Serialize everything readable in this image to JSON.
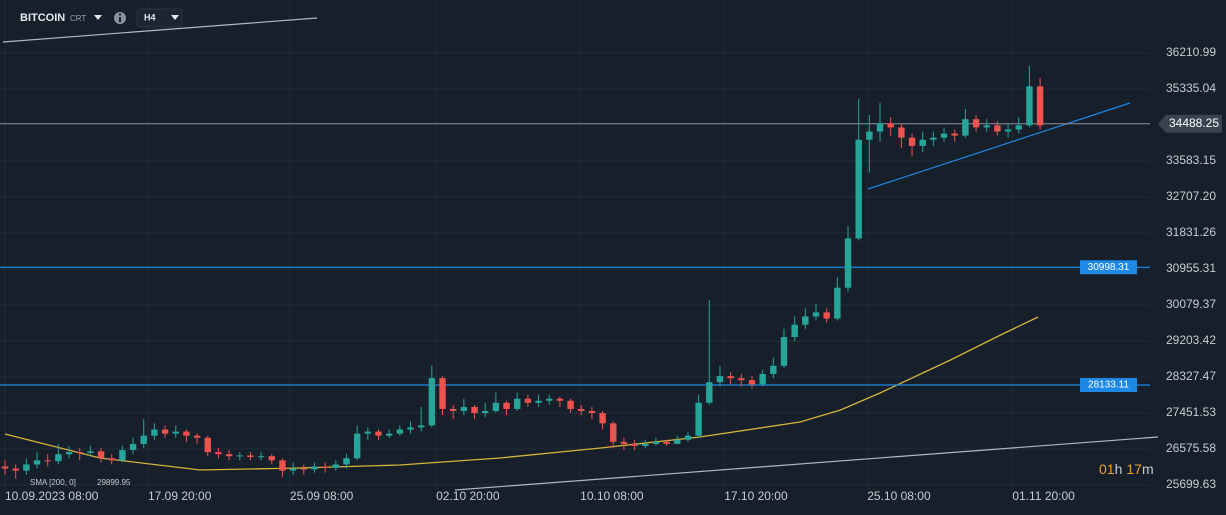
{
  "chart_data": {
    "type": "candlestick",
    "title": "BITCOIN",
    "instrument_tag": "CRT",
    "timeframe": "H4",
    "up_color": "#26a69a",
    "down_color": "#ef5350",
    "grid": true,
    "x": [
      0,
      1,
      2,
      3,
      4,
      5,
      6,
      7,
      8,
      9,
      10,
      11,
      12,
      13,
      14,
      15,
      16,
      17,
      18,
      19,
      20,
      21,
      22,
      23,
      24,
      25,
      26,
      27,
      28,
      29,
      30,
      31,
      32,
      33,
      34,
      35,
      36,
      37,
      38,
      39,
      40,
      41,
      42,
      43,
      44,
      45,
      46,
      47,
      48,
      49,
      50,
      51,
      52,
      53,
      54,
      55,
      56,
      57,
      58,
      59,
      60,
      61,
      62,
      63,
      64,
      65,
      66,
      67,
      68,
      69,
      70,
      71,
      72,
      73,
      74,
      75,
      76,
      77,
      78,
      79,
      80,
      81,
      82,
      83,
      84,
      85,
      86,
      87,
      88,
      89,
      90,
      91,
      92,
      93,
      94,
      95,
      96,
      97
    ],
    "open": [
      26150,
      26100,
      26050,
      26200,
      26300,
      26280,
      26450,
      26500,
      26480,
      26520,
      26350,
      26300,
      26550,
      26700,
      26900,
      27050,
      26950,
      27000,
      26900,
      26850,
      26500,
      26450,
      26400,
      26420,
      26380,
      26400,
      26300,
      26050,
      26100,
      26080,
      26150,
      26120,
      26200,
      26350,
      26950,
      27000,
      26900,
      26950,
      27050,
      27100,
      27150,
      28300,
      27550,
      27500,
      27600,
      27450,
      27500,
      27700,
      27550,
      27800,
      27700,
      27750,
      27800,
      27750,
      27550,
      27500,
      27450,
      27200,
      26750,
      26700,
      26650,
      26700,
      26750,
      26700,
      26800,
      26900,
      27700,
      28200,
      28350,
      28300,
      28250,
      28150,
      28400,
      28600,
      29300,
      29600,
      29800,
      29900,
      29750,
      30500,
      31700,
      34100,
      34300,
      34500,
      34400,
      34150,
      33950,
      34100,
      34150,
      34250,
      34200,
      34600,
      34400,
      34450,
      34300,
      34350,
      34450,
      35400
    ],
    "high": [
      26300,
      26200,
      26350,
      26500,
      26450,
      26700,
      26650,
      26600,
      26650,
      26600,
      26450,
      26650,
      26850,
      27300,
      27200,
      27150,
      27150,
      27050,
      26950,
      26900,
      26600,
      26550,
      26500,
      26500,
      26500,
      26450,
      26350,
      26250,
      26200,
      26250,
      26250,
      26300,
      26450,
      27150,
      27100,
      27050,
      27050,
      27150,
      27250,
      27600,
      28600,
      28350,
      27650,
      27800,
      27650,
      27700,
      27950,
      27750,
      27950,
      27900,
      27900,
      27900,
      27850,
      27800,
      27650,
      27600,
      27500,
      27250,
      26850,
      26800,
      26800,
      26850,
      26800,
      26900,
      27000,
      27900,
      30200,
      28600,
      28450,
      28400,
      28350,
      28500,
      28800,
      29500,
      29800,
      30000,
      30100,
      30000,
      30750,
      32000,
      35100,
      34700,
      35000,
      34650,
      34500,
      34250,
      34300,
      34300,
      34400,
      34350,
      34850,
      34700,
      34600,
      34550,
      34500,
      34650,
      35900,
      35600
    ],
    "low": [
      25950,
      25850,
      25950,
      26100,
      26150,
      26200,
      26350,
      26300,
      26400,
      26250,
      26200,
      26250,
      26450,
      26600,
      26800,
      26850,
      26850,
      26750,
      26700,
      26400,
      26350,
      26300,
      26300,
      26300,
      26300,
      26200,
      25900,
      25950,
      25950,
      26000,
      26000,
      26050,
      26100,
      26300,
      26800,
      26800,
      26850,
      26900,
      26950,
      27000,
      27100,
      27400,
      27300,
      27400,
      27300,
      27350,
      27450,
      27400,
      27500,
      27600,
      27600,
      27650,
      27600,
      27450,
      27400,
      27300,
      27050,
      26600,
      26550,
      26550,
      26600,
      26650,
      26650,
      26700,
      26750,
      26850,
      27650,
      28100,
      28150,
      28100,
      28050,
      28100,
      28300,
      28550,
      29200,
      29500,
      29700,
      29650,
      29700,
      30400,
      31650,
      33300,
      34050,
      34200,
      33900,
      33700,
      33800,
      33950,
      34050,
      34050,
      34150,
      34300,
      34300,
      34200,
      34150,
      34250,
      34400,
      34350
    ],
    "close": [
      26100,
      26050,
      26200,
      26300,
      26280,
      26450,
      26500,
      26480,
      26520,
      26350,
      26300,
      26550,
      26700,
      26900,
      27050,
      26950,
      27000,
      26900,
      26850,
      26500,
      26450,
      26400,
      26420,
      26380,
      26400,
      26300,
      26050,
      26100,
      26080,
      26150,
      26120,
      26200,
      26350,
      26950,
      27000,
      26900,
      26950,
      27050,
      27100,
      27150,
      28300,
      27550,
      27500,
      27600,
      27450,
      27500,
      27700,
      27550,
      27800,
      27700,
      27750,
      27800,
      27750,
      27550,
      27500,
      27450,
      27200,
      26750,
      26700,
      26650,
      26700,
      26750,
      26700,
      26800,
      26900,
      27700,
      28200,
      28350,
      28300,
      28250,
      28150,
      28400,
      28600,
      29300,
      29600,
      29800,
      29900,
      29750,
      30500,
      31700,
      34100,
      34300,
      34500,
      34400,
      34150,
      33950,
      34100,
      34150,
      34250,
      34200,
      34600,
      34400,
      34450,
      34300,
      34350,
      34450,
      35400,
      34450
    ],
    "xlim": [
      -0.47,
      107.3
    ],
    "ylim": [
      24970,
      37500
    ],
    "xticks": [
      {
        "value": 0,
        "label": "10.09.2023  08:00"
      },
      {
        "value": 13.4,
        "label": "17.09  20:00"
      },
      {
        "value": 26.7,
        "label": "25.09  08:00"
      },
      {
        "value": 40.4,
        "label": "02.10  20:00"
      },
      {
        "value": 53.9,
        "label": "10.10  08:00"
      },
      {
        "value": 67.4,
        "label": "17.10  20:00"
      },
      {
        "value": 80.8,
        "label": "25.10  08:00"
      },
      {
        "value": 94.4,
        "label": "01.11  20:00"
      }
    ],
    "yticks": [
      36210.99,
      35335.04,
      33583.15,
      {
        "value": 32707.2,
        "label": "32707.20"
      },
      31831.26,
      30955.31,
      30079.37,
      29203.42,
      28327.47,
      27451.53,
      26575.58,
      25699.63
    ],
    "hlines": [
      {
        "value": 30998.31,
        "color": "#1e88e5"
      },
      {
        "value": 28133.11,
        "color": "#1e88e5"
      }
    ],
    "price_line": {
      "value": 34488.25,
      "color": "#8a939e"
    },
    "sma": {
      "label": "SMA [200, 0]",
      "value": 29899.95,
      "color": "#d4b43a",
      "x": [
        0,
        8.9,
        18.3,
        27.6,
        37,
        46.4,
        55.8,
        65.1,
        74.5,
        78.3,
        82,
        88.6,
        93.3,
        96.8
      ],
      "values": [
        26940.5,
        26356.6,
        26064.6,
        26113.2,
        26186.3,
        26356.6,
        26599.9,
        26867.5,
        27232.5,
        27524.5,
        27938.1,
        28741.1,
        29349.4,
        29787.4
      ]
    },
    "countdown": [
      "01",
      "h",
      "17",
      "m"
    ]
  }
}
